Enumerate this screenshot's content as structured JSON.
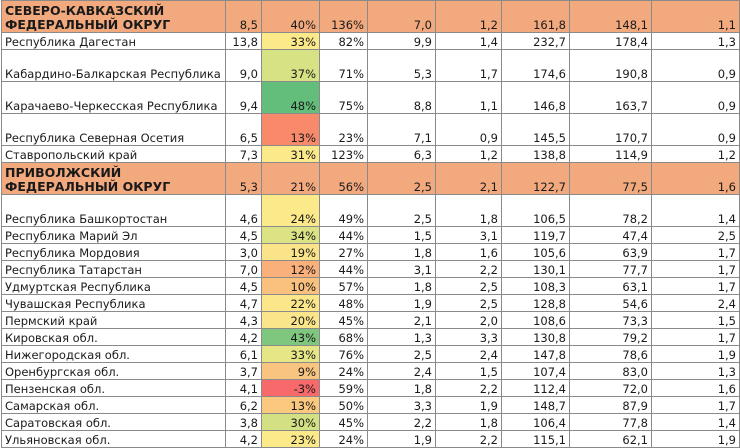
{
  "colors": {
    "district_bg": "#f2a97e",
    "scale_red": "#f8896b",
    "scale_yellow": "#fbe98a",
    "scale_green": "#63be7b"
  },
  "rows": [
    {
      "name": "СЕВЕРО-КАВКАЗСКИЙ ФЕДЕРАЛЬНЫЙ ОКРУГ",
      "type": "district",
      "tall": true,
      "c1": "8,5",
      "c2": "40%",
      "c3": "136%",
      "c4": "7,0",
      "c5": "1,2",
      "c6": "161,8",
      "c7": "148,1",
      "c8": "1,1"
    },
    {
      "name": "Республика Дагестан",
      "tall": false,
      "c1": "13,8",
      "c2": "33%",
      "c2_color": "#fbe98a",
      "c3": "82%",
      "c4": "9,9",
      "c5": "1,4",
      "c6": "232,7",
      "c7": "178,4",
      "c8": "1,3"
    },
    {
      "name": "Кабардино-Балкарская Республика",
      "tall": true,
      "c1": "9,0",
      "c2": "37%",
      "c2_color": "#d7e285",
      "c3": "71%",
      "c4": "5,3",
      "c5": "1,7",
      "c6": "174,6",
      "c7": "190,8",
      "c8": "0,9"
    },
    {
      "name": "Карачаево-Черкесская Республика",
      "tall": true,
      "c1": "9,4",
      "c2": "48%",
      "c2_color": "#63be7b",
      "c3": "75%",
      "c4": "8,8",
      "c5": "1,1",
      "c6": "146,8",
      "c7": "163,7",
      "c8": "0,9"
    },
    {
      "name": "Республика Северная Осетия",
      "tall": true,
      "c1": "6,5",
      "c2": "13%",
      "c2_color": "#f8896b",
      "c3": "23%",
      "c4": "7,1",
      "c5": "0,9",
      "c6": "145,5",
      "c7": "170,7",
      "c8": "0,9"
    },
    {
      "name": "Ставропольский край",
      "tall": false,
      "c1": "7,3",
      "c2": "31%",
      "c2_color": "#fbe98a",
      "c3": "123%",
      "c4": "6,3",
      "c5": "1,2",
      "c6": "138,8",
      "c7": "114,9",
      "c8": "1,2"
    },
    {
      "name": "ПРИВОЛЖСКИЙ ФЕДЕРАЛЬНЫЙ ОКРУГ",
      "type": "district",
      "tall": true,
      "c1": "5,3",
      "c2": "21%",
      "c3": "56%",
      "c4": "2,5",
      "c5": "2,1",
      "c6": "122,7",
      "c7": "77,5",
      "c8": "1,6"
    },
    {
      "name": "Республика Башкортостан",
      "tall": true,
      "c1": "4,6",
      "c2": "24%",
      "c2_color": "#fbe98a",
      "c3": "49%",
      "c4": "2,5",
      "c5": "1,8",
      "c6": "106,5",
      "c7": "78,2",
      "c8": "1,4"
    },
    {
      "name": "Республика Марий Эл",
      "tall": false,
      "c1": "4,5",
      "c2": "34%",
      "c2_color": "#dbe385",
      "c3": "44%",
      "c4": "1,5",
      "c5": "3,1",
      "c6": "119,7",
      "c7": "47,4",
      "c8": "2,5"
    },
    {
      "name": "Республика Мордовия",
      "tall": false,
      "c1": "3,0",
      "c2": "19%",
      "c2_color": "#fbe38a",
      "c3": "27%",
      "c4": "1,8",
      "c5": "1,6",
      "c6": "105,6",
      "c7": "63,9",
      "c8": "1,7"
    },
    {
      "name": "Республика Татарстан",
      "tall": false,
      "c1": "7,0",
      "c2": "12%",
      "c2_color": "#f9b07a",
      "c3": "44%",
      "c4": "3,1",
      "c5": "2,2",
      "c6": "130,1",
      "c7": "77,7",
      "c8": "1,7"
    },
    {
      "name": "Удмуртская Республика",
      "tall": false,
      "c1": "4,5",
      "c2": "10%",
      "c2_color": "#f9c07e",
      "c3": "57%",
      "c4": "1,8",
      "c5": "2,5",
      "c6": "108,3",
      "c7": "63,1",
      "c8": "1,7"
    },
    {
      "name": "Чувашская Республика",
      "tall": false,
      "c1": "4,7",
      "c2": "22%",
      "c2_color": "#fbe78a",
      "c3": "48%",
      "c4": "1,9",
      "c5": "2,5",
      "c6": "128,8",
      "c7": "54,6",
      "c8": "2,4"
    },
    {
      "name": "Пермский край",
      "tall": false,
      "c1": "4,3",
      "c2": "20%",
      "c2_color": "#fbe58a",
      "c3": "45%",
      "c4": "2,1",
      "c5": "2,0",
      "c6": "108,6",
      "c7": "73,3",
      "c8": "1,5"
    },
    {
      "name": "Кировская обл.",
      "tall": false,
      "c1": "4,2",
      "c2": "43%",
      "c2_color": "#7fc77e",
      "c3": "68%",
      "c4": "1,3",
      "c5": "3,3",
      "c6": "130,8",
      "c7": "79,2",
      "c8": "1,7"
    },
    {
      "name": "Нижегородская обл.",
      "tall": false,
      "c1": "6,1",
      "c2": "33%",
      "c2_color": "#e6e687",
      "c3": "76%",
      "c4": "2,5",
      "c5": "2,4",
      "c6": "147,8",
      "c7": "78,6",
      "c8": "1,9"
    },
    {
      "name": "Оренбургская обл.",
      "tall": false,
      "c1": "3,7",
      "c2": "9%",
      "c2_color": "#f9c47f",
      "c3": "24%",
      "c4": "2,4",
      "c5": "1,5",
      "c6": "107,4",
      "c7": "83,0",
      "c8": "1,3"
    },
    {
      "name": "Пензенская обл.",
      "tall": false,
      "c1": "4,1",
      "c2": "-3%",
      "c2_color": "#f8696b",
      "c3": "59%",
      "c4": "1,8",
      "c5": "2,2",
      "c6": "112,4",
      "c7": "72,0",
      "c8": "1,6"
    },
    {
      "name": "Самарская обл.",
      "tall": false,
      "c1": "6,2",
      "c2": "13%",
      "c2_color": "#fbc87f",
      "c3": "50%",
      "c4": "3,3",
      "c5": "1,9",
      "c6": "148,7",
      "c7": "87,9",
      "c8": "1,7"
    },
    {
      "name": "Саратовская обл.",
      "tall": false,
      "c1": "3,8",
      "c2": "30%",
      "c2_color": "#d3e083",
      "c3": "45%",
      "c4": "2,2",
      "c5": "1,8",
      "c6": "106,4",
      "c7": "77,8",
      "c8": "1,4"
    },
    {
      "name": "Ульяновская обл.",
      "tall": false,
      "c1": "4,2",
      "c2": "23%",
      "c2_color": "#fbe98a",
      "c3": "24%",
      "c4": "1,9",
      "c5": "2,2",
      "c6": "115,1",
      "c7": "62,1",
      "c8": "1,9"
    }
  ]
}
